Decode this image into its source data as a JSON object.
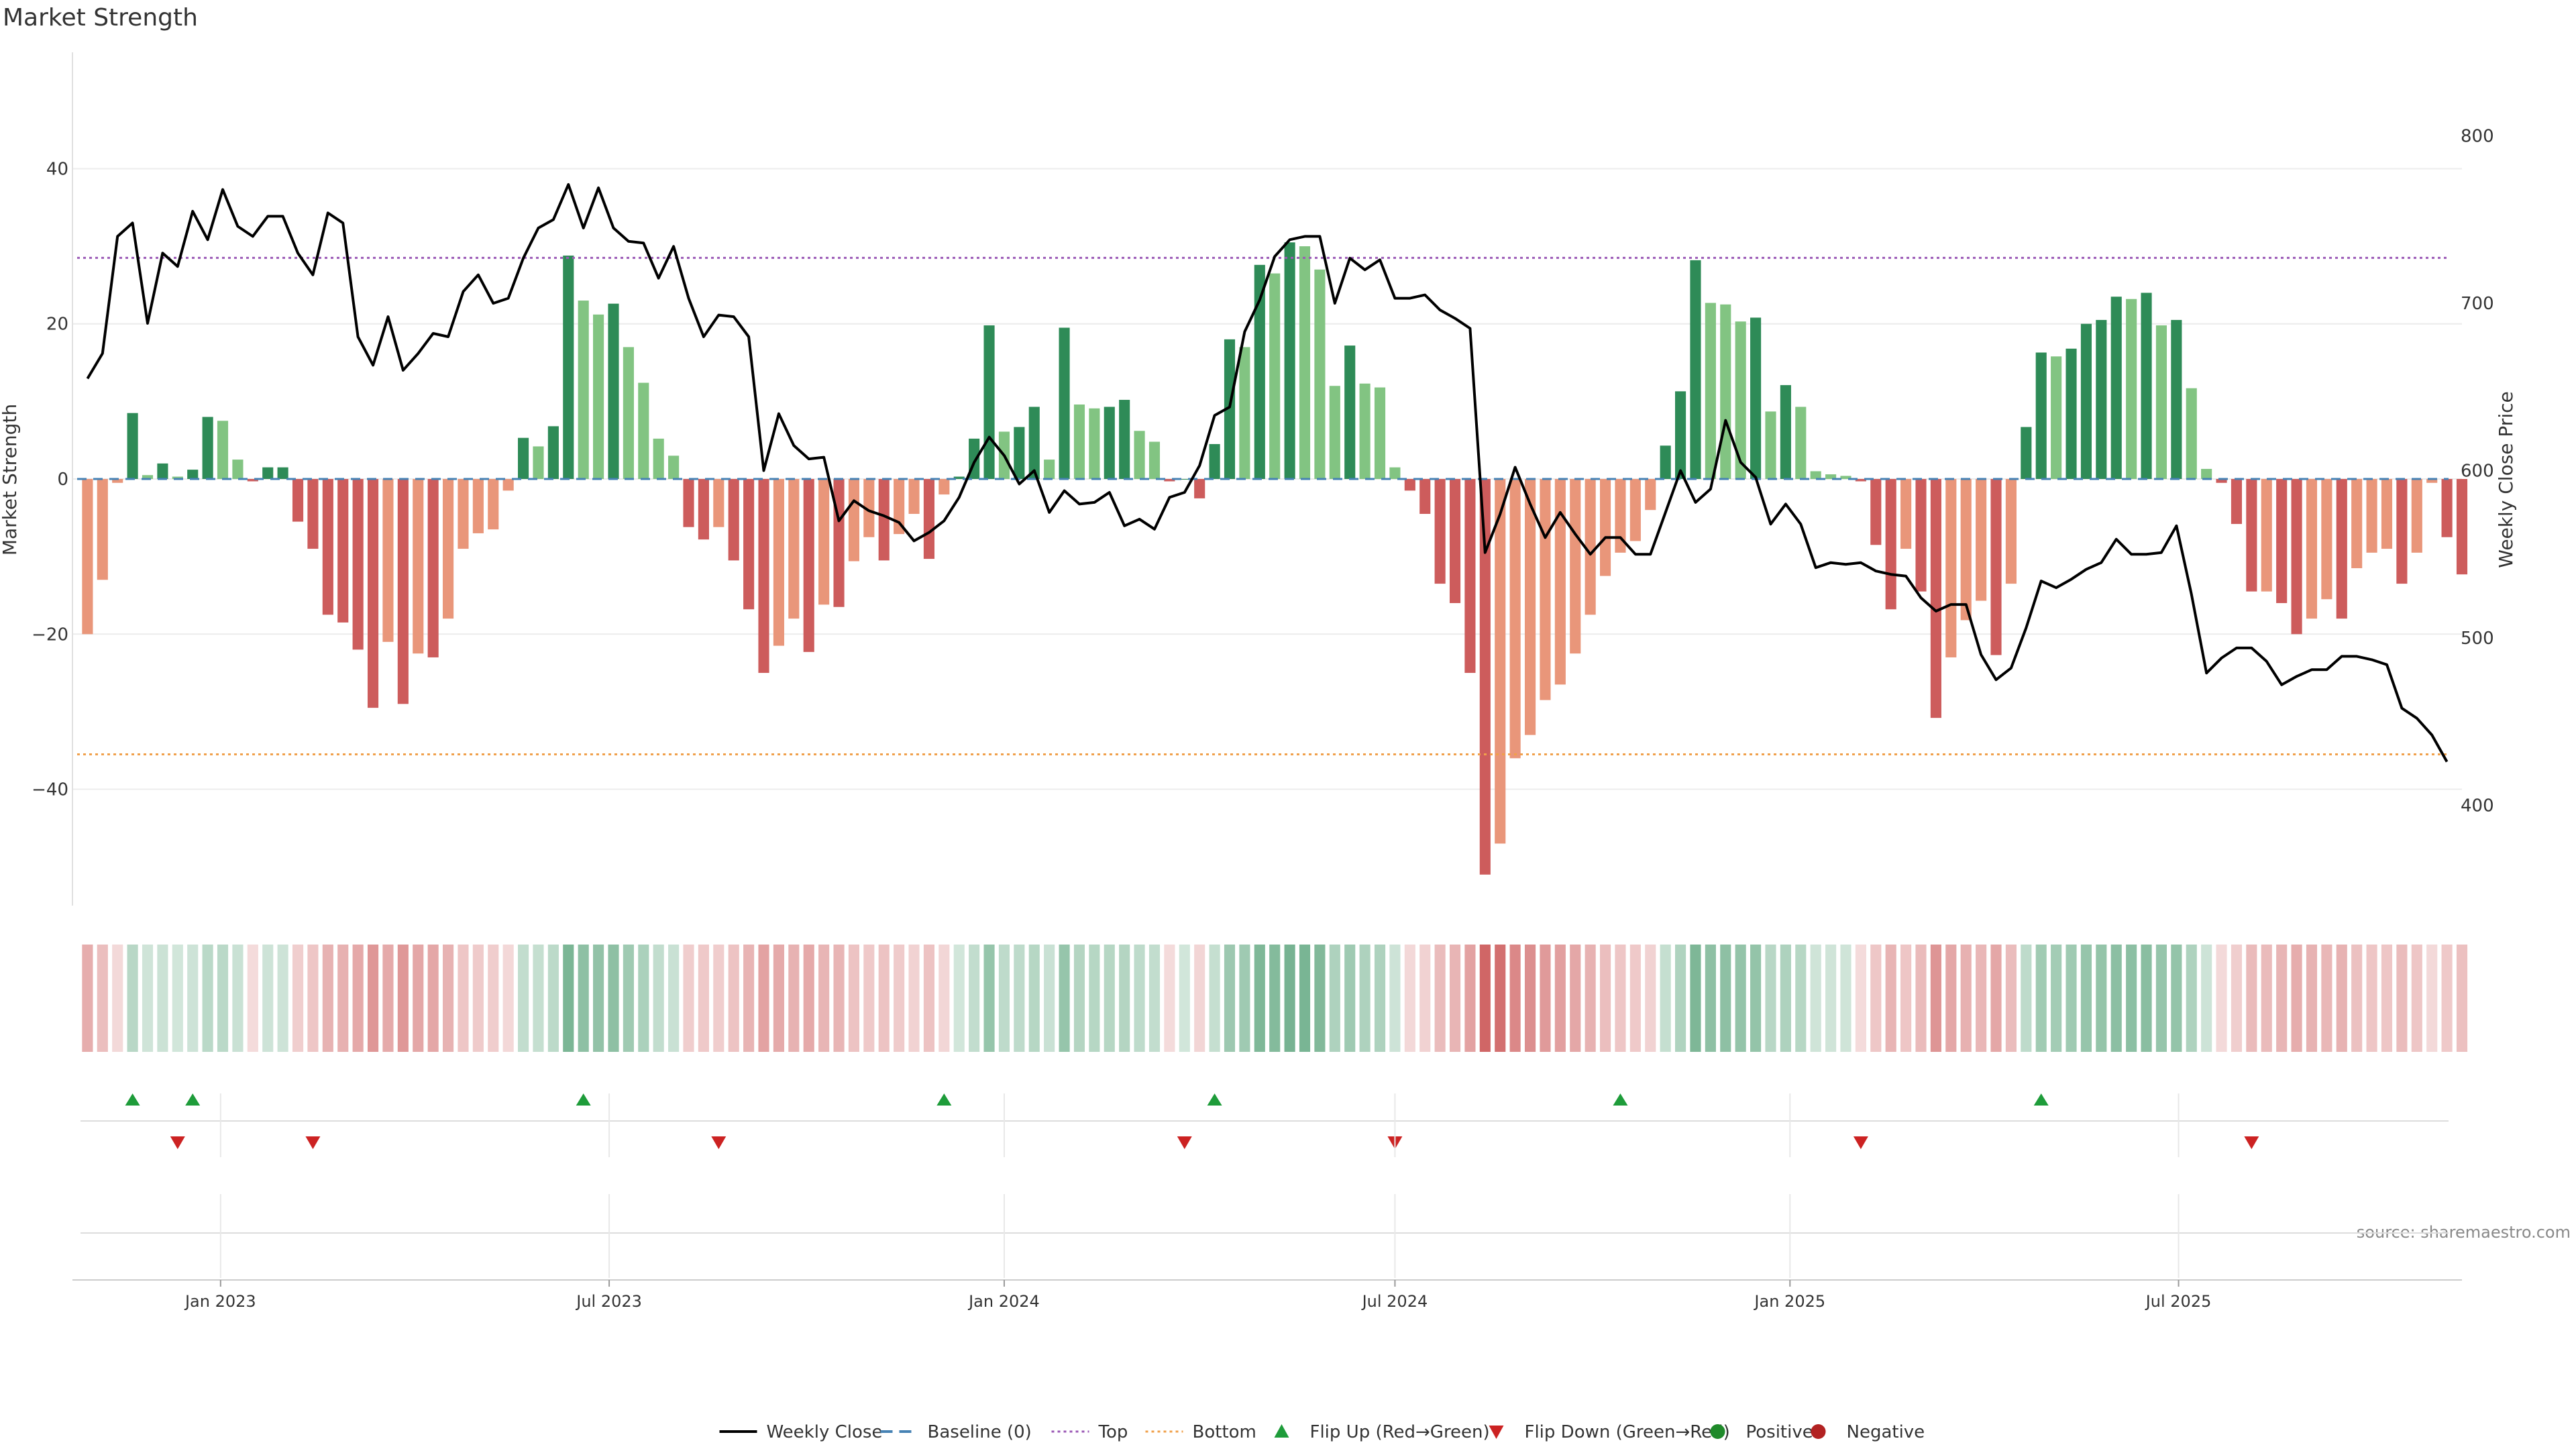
{
  "chart_data": {
    "type": "bar",
    "title": "Market Strength",
    "ylabel": "Market Strength",
    "y2label": "Weekly Close Price",
    "ylim": [
      -55,
      55
    ],
    "y2lim": [
      340,
      850
    ],
    "yticks": [
      40,
      20,
      0,
      -20,
      -40
    ],
    "y2ticks": [
      800,
      700,
      600,
      500,
      400
    ],
    "xlim": [
      "2022-10-24",
      "2025-11-10"
    ],
    "xticks": [
      {
        "date": "2023-01-01",
        "label": "Jan 2023"
      },
      {
        "date": "2023-07-01",
        "label": "Jul 2023"
      },
      {
        "date": "2024-01-01",
        "label": "Jan 2024"
      },
      {
        "date": "2024-07-01",
        "label": "Jul 2024"
      },
      {
        "date": "2025-01-01",
        "label": "Jan 2025"
      },
      {
        "date": "2025-07-01",
        "label": "Jul 2025"
      }
    ],
    "start_date": "2022-10-31",
    "top_line": 28.5,
    "bottom_line": -35.5,
    "strength": [
      -20,
      -13,
      -0.5,
      8.5,
      0.5,
      2,
      0.3,
      1.2,
      8,
      7.5,
      2.5,
      -0.3,
      1.5,
      1.5,
      -5.5,
      -9,
      -17.5,
      -18.5,
      -22,
      -29.5,
      -21,
      -29,
      -22.5,
      -23,
      -18,
      -9,
      -7,
      -6.5,
      -1.5,
      5.3,
      4.2,
      6.8,
      28.8,
      23,
      21.2,
      22.6,
      17,
      12.4,
      5.2,
      3,
      -6.2,
      -7.8,
      -6.2,
      -10.5,
      -16.8,
      -25,
      -21.5,
      -18,
      -22.3,
      -16.2,
      -16.5,
      -10.6,
      -7.5,
      -10.5,
      -7.1,
      -4.5,
      -10.3,
      -2,
      0.3,
      5.2,
      19.8,
      6.1,
      6.7,
      9.3,
      2.5,
      19.5,
      9.6,
      9.1,
      9.3,
      10.2,
      6.2,
      4.8,
      -0.3,
      0,
      -2.5,
      4.5,
      18,
      17,
      27.6,
      26.5,
      30.5,
      30,
      27,
      12,
      17.2,
      12.3,
      11.8,
      1.5,
      -1.5,
      -4.5,
      -13.5,
      -16,
      -25,
      -51,
      -47,
      -36,
      -33,
      -28.5,
      -26.5,
      -22.5,
      -17.5,
      -12.5,
      -9.5,
      -8,
      -4,
      4.3,
      11.3,
      28.2,
      22.7,
      22.5,
      20.3,
      20.8,
      8.7,
      12.1,
      9.3,
      1,
      0.6,
      0.4,
      -0.3,
      -8.5,
      -16.8,
      -9,
      -14.5,
      -30.8,
      -23,
      -18.2,
      -15.7,
      -22.7,
      -13.5,
      6.7,
      16.3,
      15.8,
      16.8,
      20,
      20.5,
      23.5,
      23.2,
      24,
      19.8,
      20.5,
      11.7,
      1.3,
      -0.5,
      -5.8,
      -14.5,
      -14.5,
      -16,
      -20,
      -18,
      -15.5,
      -18,
      -11.5,
      -9.5,
      -9,
      -13.5,
      -9.5,
      -0.5,
      -7.5,
      -12.3
    ],
    "weekly_close": [
      655,
      670,
      740,
      748,
      688,
      730,
      722,
      755,
      738,
      768,
      746,
      740,
      752,
      752,
      730,
      717,
      754,
      748,
      680,
      663,
      692,
      660,
      670,
      682,
      680,
      707,
      717,
      700,
      703,
      727,
      745,
      750,
      771,
      745,
      769,
      745,
      737,
      736,
      715,
      734,
      703,
      680,
      693,
      692,
      680,
      600,
      634,
      615,
      607,
      608,
      570,
      582,
      576,
      573,
      569,
      558,
      563,
      570,
      584,
      605,
      620,
      609,
      592,
      600,
      575,
      588,
      580,
      581,
      587,
      567,
      571,
      565,
      584,
      587,
      603,
      633,
      638,
      683,
      702,
      728,
      738,
      740,
      740,
      700,
      727,
      720,
      726,
      703,
      703,
      705,
      696,
      691,
      685,
      551,
      574,
      602,
      580,
      560,
      575,
      562,
      550,
      560,
      560,
      550,
      550,
      575,
      600,
      581,
      589,
      630,
      605,
      596,
      568,
      580,
      568,
      542,
      545,
      544,
      545,
      540,
      538,
      537,
      524,
      516,
      520,
      520,
      490,
      475,
      482,
      506,
      534,
      530,
      535,
      541,
      545,
      559,
      550,
      550,
      551,
      567,
      526,
      479,
      488,
      494,
      494,
      486,
      472,
      477,
      481,
      481,
      489,
      489,
      487,
      484,
      458,
      452,
      442,
      426
    ],
    "flip_up": [
      "2022-11-21",
      "2022-12-19",
      "2023-06-19",
      "2023-12-04",
      "2024-04-08",
      "2024-10-14",
      "2025-04-28"
    ],
    "flip_down": [
      "2022-12-12",
      "2023-02-13",
      "2023-08-21",
      "2024-03-25",
      "2024-07-01",
      "2025-02-03",
      "2025-08-04"
    ],
    "legend": [
      "Weekly Close",
      "Baseline (0)",
      "Top",
      "Bottom",
      "Flip Up (Red→Green)",
      "Flip Down (Green→Red)",
      "Positive",
      "Negative"
    ],
    "legend_placement": "bottom-center",
    "source": "source: sharemaestro.com",
    "colors": {
      "pos_strong": "#2e8b57",
      "pos_light": "#82c482",
      "neg_strong": "#cd5c5c",
      "neg_light": "#e9967a",
      "close_line": "#000000",
      "baseline": "#4682b4",
      "top": "#9b59b6",
      "bottom": "#f0a04b",
      "flip_up": "#1e9c3a",
      "flip_down": "#cc2222",
      "positive_dot": "#1f8a2a",
      "negative_dot": "#b22222"
    }
  }
}
